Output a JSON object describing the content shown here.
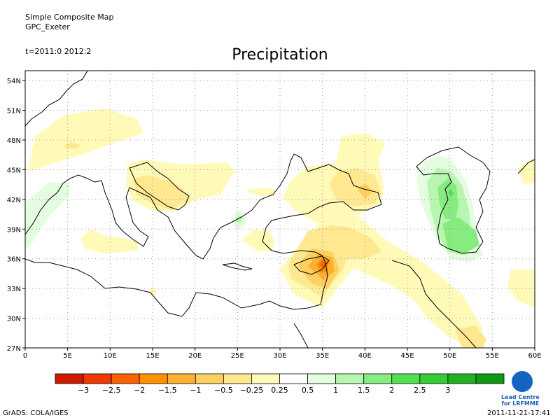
{
  "header": {
    "line1": "Simple Composite Map",
    "line2": "GPC_Exeter",
    "time": "t=2011:0 2012:2",
    "title": "Precipitation"
  },
  "map": {
    "lon_range": [
      0,
      60
    ],
    "lat_range": [
      27,
      55
    ],
    "lon_ticks": [
      "0",
      "5E",
      "10E",
      "15E",
      "20E",
      "25E",
      "30E",
      "35E",
      "40E",
      "45E",
      "50E",
      "55E",
      "60E"
    ],
    "lat_ticks": [
      "27N",
      "30N",
      "33N",
      "36N",
      "39N",
      "42N",
      "45N",
      "48N",
      "51N",
      "54N"
    ],
    "grid": "dotted"
  },
  "colorbar": {
    "colors": [
      "#d01a00",
      "#f03800",
      "#ff6000",
      "#ff9000",
      "#ffb030",
      "#ffd060",
      "#ffe890",
      "#fffab8",
      "#ffffff",
      "#e4fce0",
      "#b8f5b0",
      "#86ec80",
      "#52df50",
      "#36cc36",
      "#20b020",
      "#109810"
    ],
    "labels": [
      "−3",
      "−2.5",
      "−2",
      "−1.5",
      "−1",
      "−0.5",
      "−0.25",
      "0.25",
      "0.5",
      "1",
      "1.5",
      "2",
      "2.5",
      "3"
    ]
  },
  "footer": {
    "left": "GrADS: COLA/IGES",
    "right": "2011-11-21-17:41",
    "logo_line1": "Lead Centre",
    "logo_line2": "for LRFMME"
  }
}
